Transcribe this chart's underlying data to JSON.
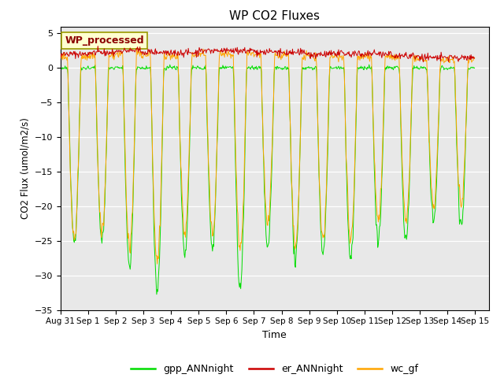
{
  "title": "WP CO2 Fluxes",
  "xlabel": "Time",
  "ylabel_str": "CO2 Flux (umol/m2/s)",
  "ylim": [
    -35,
    6
  ],
  "yticks": [
    -35,
    -30,
    -25,
    -20,
    -15,
    -10,
    -5,
    0,
    5
  ],
  "annotation_text": "WP_processed",
  "annotation_color": "#8B0000",
  "annotation_bg": "#FFFFD0",
  "annotation_edge": "#999900",
  "gpp_color": "#00DD00",
  "er_color": "#CC0000",
  "wc_color": "#FFA500",
  "bg_color": "#E8E8E8",
  "legend_fontsize": 9,
  "title_fontsize": 11,
  "day_gpp_amp": [
    25,
    25,
    29,
    32,
    27,
    26,
    32,
    26,
    28,
    27,
    28,
    25,
    25,
    22,
    23
  ],
  "day_er_amp": [
    2.0,
    2.2,
    2.5,
    2.3,
    2.2,
    2.5,
    2.5,
    2.3,
    2.2,
    2.0,
    2.0,
    2.0,
    1.8,
    1.5,
    1.5
  ],
  "day_wc_amp": [
    25,
    24,
    26,
    28,
    24,
    24,
    26,
    23,
    26,
    25,
    25,
    22,
    22,
    20,
    20
  ]
}
